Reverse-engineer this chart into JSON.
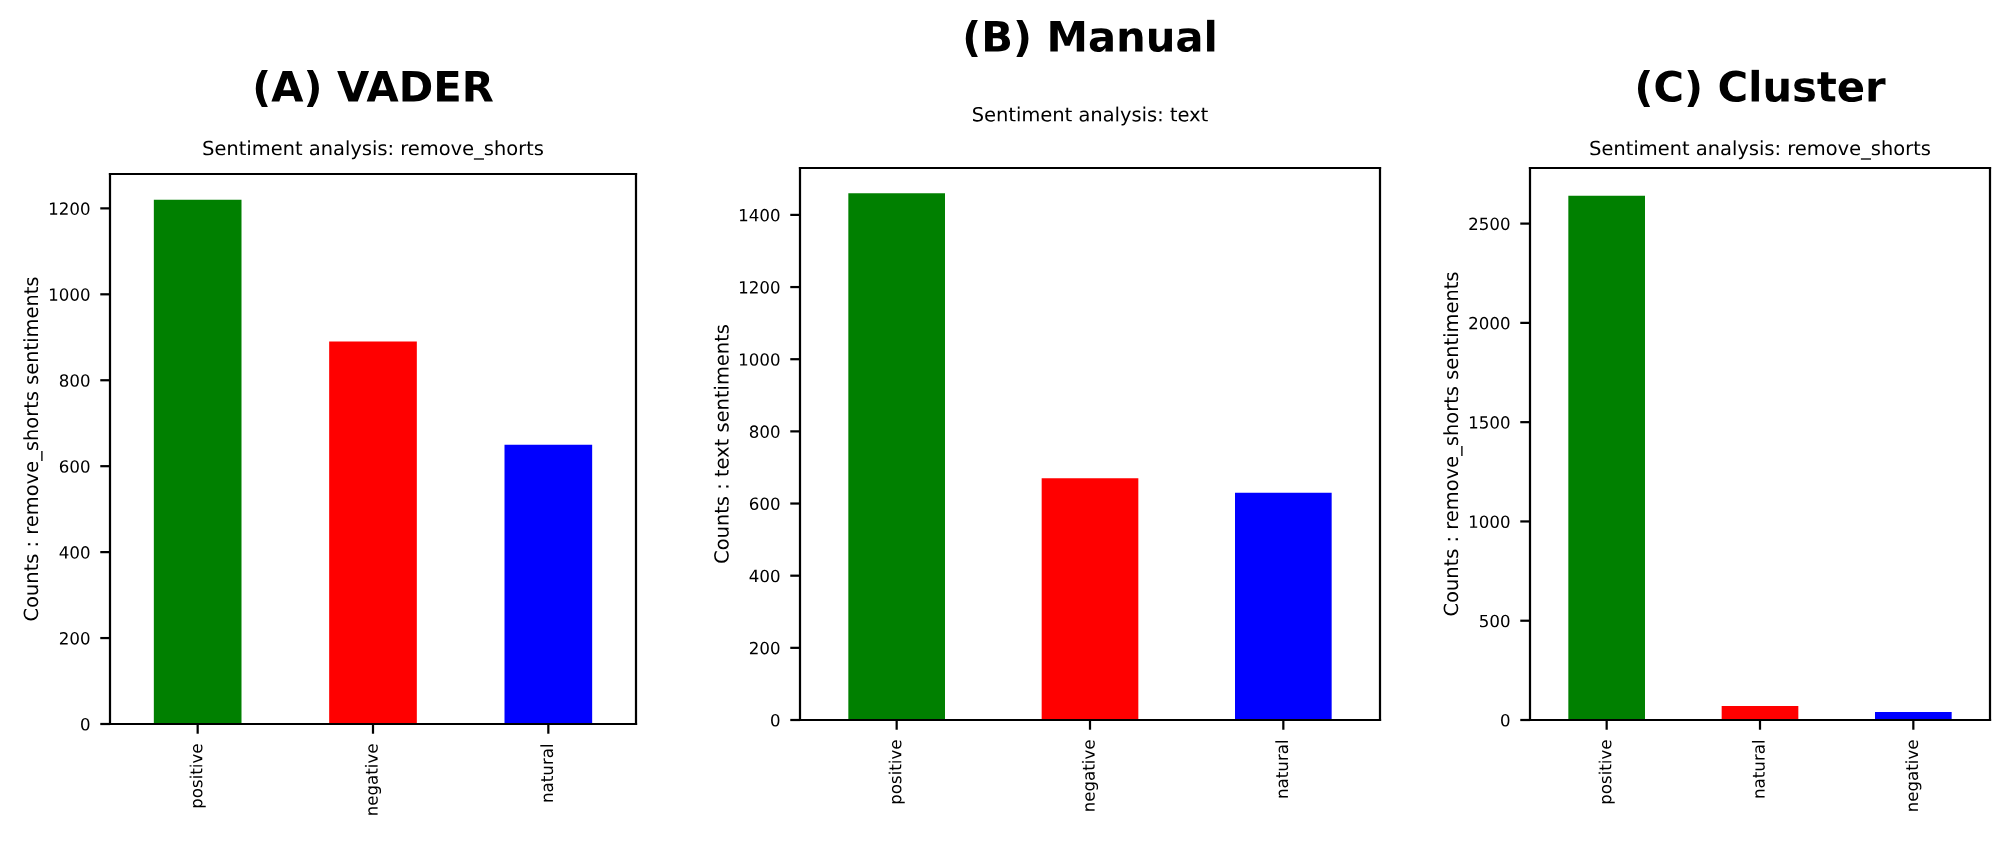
{
  "chart_data": [
    {
      "type": "bar",
      "title": "(A) VADER",
      "subtitle": "Sentiment analysis: remove_shorts",
      "ylabel": "Counts : remove_shorts sentiments",
      "categories": [
        "positive",
        "negative",
        "natural"
      ],
      "values": [
        1220,
        890,
        650
      ],
      "colors": [
        "#008000",
        "#ff0000",
        "#0000ff"
      ],
      "ylim": [
        0,
        1280
      ],
      "yticks": [
        0,
        200,
        400,
        600,
        800,
        1000,
        1200
      ]
    },
    {
      "type": "bar",
      "title": "(B) Manual",
      "subtitle": "Sentiment analysis: text",
      "ylabel": "Counts : text sentiments",
      "categories": [
        "positive",
        "negative",
        "natural"
      ],
      "values": [
        1460,
        670,
        630
      ],
      "colors": [
        "#008000",
        "#ff0000",
        "#0000ff"
      ],
      "ylim": [
        0,
        1530
      ],
      "yticks": [
        0,
        200,
        400,
        600,
        800,
        1000,
        1200,
        1400
      ]
    },
    {
      "type": "bar",
      "title": "(C) Cluster",
      "subtitle": "Sentiment analysis: remove_shorts",
      "ylabel": "Counts : remove_shorts sentiments",
      "categories": [
        "positive",
        "natural",
        "negative"
      ],
      "values": [
        2640,
        70,
        40
      ],
      "colors": [
        "#008000",
        "#ff0000",
        "#0000ff"
      ],
      "ylim": [
        0,
        2780
      ],
      "yticks": [
        0,
        500,
        1000,
        1500,
        2000,
        2500
      ]
    }
  ]
}
